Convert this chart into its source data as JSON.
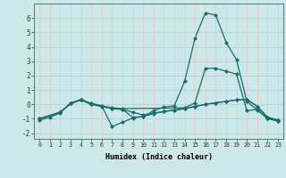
{
  "xlabel": "Humidex (Indice chaleur)",
  "xlim": [
    -0.5,
    23.5
  ],
  "ylim": [
    -2.4,
    7.0
  ],
  "xticks": [
    0,
    1,
    2,
    3,
    4,
    5,
    6,
    7,
    8,
    9,
    10,
    11,
    12,
    13,
    14,
    15,
    16,
    17,
    18,
    19,
    20,
    21,
    22,
    23
  ],
  "yticks": [
    -2,
    -1,
    0,
    1,
    2,
    3,
    4,
    5,
    6
  ],
  "bg_color": "#cde8e8",
  "grid_color": "#b8c8c8",
  "grid_color2": "#e8c8c8",
  "line_color": "#1a6b6b",
  "line1_x": [
    0,
    1,
    2,
    3,
    4,
    5,
    6,
    7,
    8,
    9,
    10,
    11,
    12,
    13,
    14,
    15,
    16,
    17,
    18,
    19,
    20,
    21,
    22,
    23
  ],
  "line1_y": [
    -1.1,
    -0.9,
    -0.6,
    0.1,
    0.3,
    0.05,
    -0.1,
    -1.55,
    -1.25,
    -0.95,
    -0.85,
    -0.45,
    -0.2,
    -0.1,
    1.6,
    4.6,
    6.35,
    6.2,
    4.3,
    3.1,
    0.2,
    -0.4,
    -1.0,
    -1.15
  ],
  "line2_x": [
    0,
    2,
    3,
    4,
    5,
    6,
    7,
    8,
    14,
    15,
    16,
    17,
    18,
    19,
    20,
    21,
    22,
    23
  ],
  "line2_y": [
    -1.0,
    -0.55,
    0.05,
    0.35,
    0.05,
    -0.1,
    -0.25,
    -0.3,
    -0.25,
    0.1,
    2.5,
    2.5,
    2.3,
    2.1,
    -0.45,
    -0.35,
    -1.0,
    -1.15
  ],
  "line3_x": [
    0,
    2,
    3,
    4,
    5,
    6,
    7,
    8,
    9,
    10,
    11,
    12,
    13,
    14,
    15,
    16,
    17,
    18,
    19,
    20,
    21,
    22,
    23
  ],
  "line3_y": [
    -1.0,
    -0.55,
    0.05,
    0.3,
    -0.0,
    -0.15,
    -0.3,
    -0.35,
    -0.55,
    -0.75,
    -0.6,
    -0.5,
    -0.4,
    -0.3,
    -0.15,
    0.0,
    0.1,
    0.2,
    0.3,
    0.35,
    -0.15,
    -0.9,
    -1.1
  ],
  "line4_x": [
    0,
    2,
    3,
    4,
    5,
    6,
    7,
    8,
    9,
    10,
    11,
    12,
    13,
    14,
    15,
    16,
    17,
    18,
    19,
    20,
    21,
    22,
    23
  ],
  "line4_y": [
    -1.0,
    -0.55,
    0.05,
    0.3,
    -0.0,
    -0.15,
    -0.3,
    -0.35,
    -0.9,
    -0.85,
    -0.65,
    -0.5,
    -0.4,
    -0.3,
    -0.15,
    0.0,
    0.1,
    0.2,
    0.3,
    0.35,
    -0.15,
    -0.9,
    -1.1
  ]
}
